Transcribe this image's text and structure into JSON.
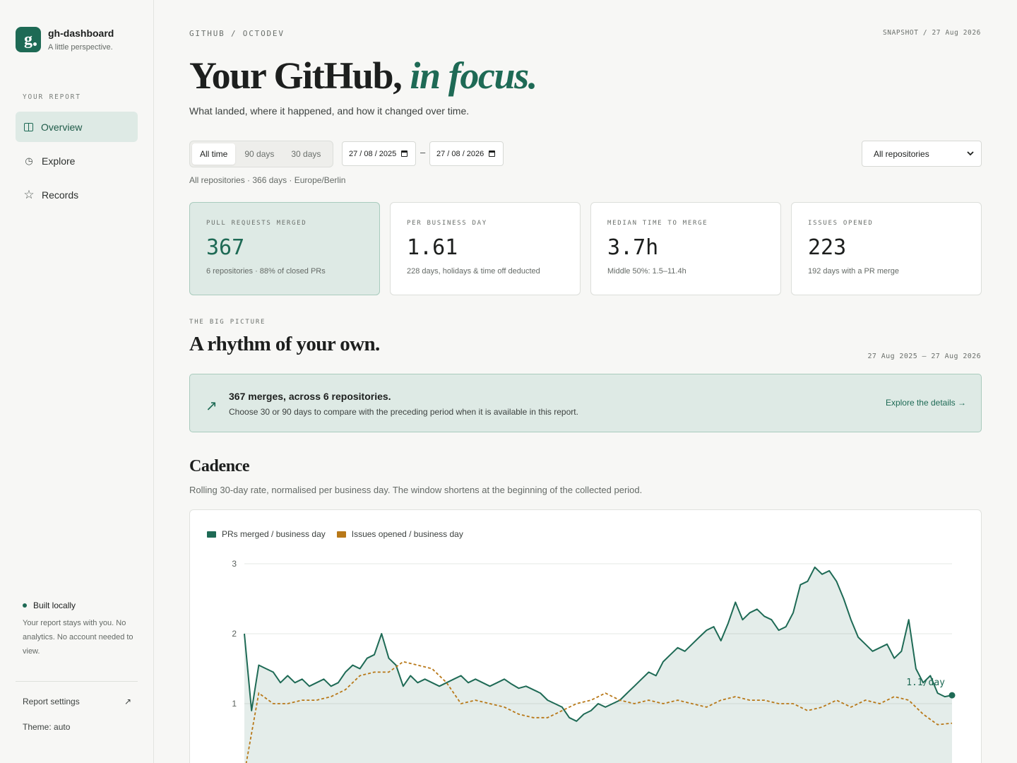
{
  "sidebar": {
    "app_name": "gh-dashboard",
    "tagline": "A little perspective.",
    "logo_letter": "g",
    "section_label": "YOUR REPORT",
    "nav": [
      {
        "label": "Overview",
        "icon": "book-open-icon",
        "active": true
      },
      {
        "label": "Explore",
        "icon": "clock-icon",
        "active": false
      },
      {
        "label": "Records",
        "icon": "star-icon",
        "active": false
      }
    ],
    "local_title": "Built locally",
    "local_text": "Your report stays with you. No analytics. No account needed to view.",
    "settings_label": "Report settings",
    "theme_label": "Theme: auto"
  },
  "header": {
    "breadcrumb": "GITHUB / OCTODEV",
    "snapshot": "SNAPSHOT / 27 Aug 2026",
    "title_main": "Your GitHub,",
    "title_emph": "in focus.",
    "subtitle": "What landed, where it happened, and how it changed over time."
  },
  "filters": {
    "ranges": [
      "All time",
      "90 days",
      "30 days"
    ],
    "active_range": "All time",
    "date_from": "27 / 08 / 2025",
    "date_to": "27 / 08 / 2026",
    "date_sep": "–",
    "repo_selected": "All repositories",
    "meta": "All repositories · 366 days · Europe/Berlin"
  },
  "stats": [
    {
      "label": "PULL REQUESTS MERGED",
      "value": "367",
      "sub": "6 repositories · 88% of closed PRs",
      "highlight": true
    },
    {
      "label": "PER BUSINESS DAY",
      "value": "1.61",
      "sub": "228 days, holidays & time off deducted",
      "highlight": false
    },
    {
      "label": "MEDIAN TIME TO MERGE",
      "value": "3.7h",
      "sub": "Middle 50%: 1.5–11.4h",
      "highlight": false
    },
    {
      "label": "ISSUES OPENED",
      "value": "223",
      "sub": "192 days with a PR merge",
      "highlight": false
    }
  ],
  "big_picture": {
    "label": "THE BIG PICTURE",
    "title": "A rhythm of your own.",
    "range": "27 Aug 2025 – 27 Aug 2026",
    "banner_title": "367 merges, across 6 repositories.",
    "banner_text": "Choose 30 or 90 days to compare with the preceding period when it is available in this report.",
    "banner_link": "Explore the details →"
  },
  "cadence": {
    "title": "Cadence",
    "subtitle": "Rolling 30-day rate, normalised per business day. The window shortens at the beginning of the collected period."
  },
  "colors": {
    "accent": "#1e6a55",
    "issues": "#b87818",
    "highlight_bg": "#deeae5"
  },
  "chart_data": {
    "type": "line",
    "x_start": "27 Aug 2025",
    "x_end": "27 Aug 2026",
    "ylim": [
      0,
      3
    ],
    "yticks": [
      "3",
      "2",
      "1"
    ],
    "grid": true,
    "legend_position": "top-left",
    "end_label": "1.1/day",
    "series": [
      {
        "name": "PRs merged / business day",
        "style": "solid",
        "fill": true,
        "values": [
          2.0,
          0.9,
          1.55,
          1.5,
          1.45,
          1.3,
          1.4,
          1.3,
          1.35,
          1.25,
          1.3,
          1.35,
          1.25,
          1.3,
          1.45,
          1.55,
          1.5,
          1.65,
          1.7,
          2.0,
          1.65,
          1.55,
          1.25,
          1.4,
          1.3,
          1.35,
          1.3,
          1.25,
          1.3,
          1.35,
          1.4,
          1.3,
          1.35,
          1.3,
          1.25,
          1.3,
          1.35,
          1.28,
          1.22,
          1.25,
          1.2,
          1.15,
          1.05,
          1.0,
          0.95,
          0.8,
          0.75,
          0.85,
          0.9,
          1.0,
          0.95,
          1.0,
          1.05,
          1.15,
          1.25,
          1.35,
          1.45,
          1.4,
          1.6,
          1.7,
          1.8,
          1.75,
          1.85,
          1.95,
          2.05,
          2.1,
          1.9,
          2.15,
          2.45,
          2.2,
          2.3,
          2.35,
          2.25,
          2.2,
          2.05,
          2.1,
          2.3,
          2.7,
          2.75,
          2.95,
          2.85,
          2.9,
          2.75,
          2.5,
          2.2,
          1.95,
          1.85,
          1.75,
          1.8,
          1.85,
          1.65,
          1.75,
          2.2,
          1.5,
          1.3,
          1.4,
          1.15,
          1.1,
          1.12
        ]
      },
      {
        "name": "Issues opened / business day",
        "style": "dashed",
        "fill": false,
        "values": [
          0.0,
          1.15,
          1.0,
          1.0,
          1.05,
          1.05,
          1.1,
          1.2,
          1.4,
          1.45,
          1.45,
          1.6,
          1.55,
          1.5,
          1.3,
          1.0,
          1.05,
          1.0,
          0.95,
          0.85,
          0.8,
          0.8,
          0.9,
          1.0,
          1.05,
          1.15,
          1.05,
          1.0,
          1.05,
          1.0,
          1.05,
          1.0,
          0.95,
          1.05,
          1.1,
          1.05,
          1.05,
          1.0,
          1.0,
          0.9,
          0.95,
          1.05,
          0.95,
          1.05,
          1.0,
          1.1,
          1.05,
          0.85,
          0.7,
          0.72
        ]
      }
    ]
  }
}
